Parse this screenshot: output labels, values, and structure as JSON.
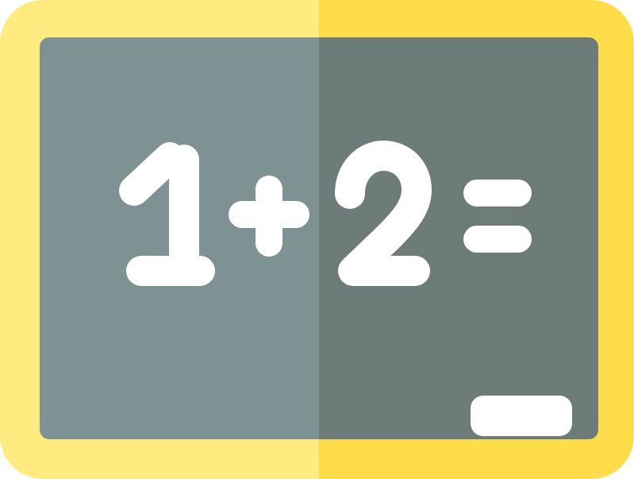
{
  "icon": {
    "name": "chalkboard-math-icon",
    "expression": "1+2=",
    "colors": {
      "frame_light": "#FFEB7F",
      "frame_dark": "#FFDD4A",
      "board_light": "#7F9293",
      "board_dark": "#6D7B79",
      "chalk": "#FFFFFF"
    }
  }
}
